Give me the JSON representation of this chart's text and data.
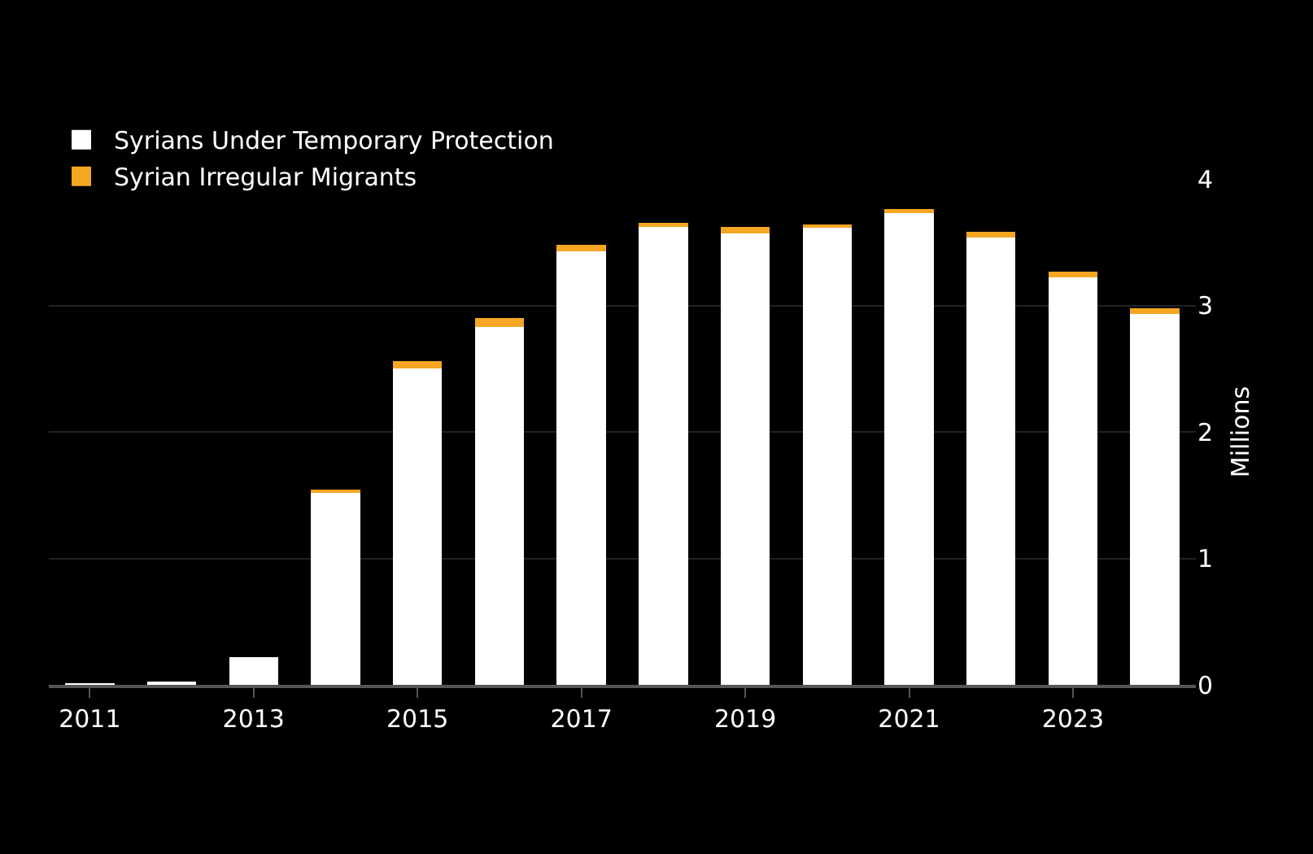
{
  "chart_data": {
    "type": "bar",
    "stacked": true,
    "x": [
      2011,
      2012,
      2013,
      2014,
      2015,
      2016,
      2017,
      2018,
      2019,
      2020,
      2021,
      2022,
      2023,
      2024
    ],
    "series": [
      {
        "name": "Syrians Under Temporary Protection",
        "color": "#ffffff",
        "values": [
          0.01,
          0.02,
          0.22,
          1.52,
          2.5,
          2.83,
          3.43,
          3.62,
          3.57,
          3.62,
          3.74,
          3.54,
          3.22,
          2.93
        ]
      },
      {
        "name": "Syrian Irregular Migrants",
        "color": "#f5a623",
        "values": [
          0,
          0,
          0,
          0.02,
          0.06,
          0.07,
          0.05,
          0.03,
          0.05,
          0.02,
          0.02,
          0.04,
          0.05,
          0.05
        ]
      }
    ],
    "ylabel": "Millions",
    "ylim": [
      0,
      4
    ],
    "yticks": [
      0,
      1,
      2,
      3,
      4
    ],
    "xlim": [
      2010.5,
      2024.5
    ],
    "xticks": [
      2011,
      2013,
      2015,
      2017,
      2019,
      2021,
      2023
    ],
    "grid": "y",
    "legend": "top left"
  }
}
